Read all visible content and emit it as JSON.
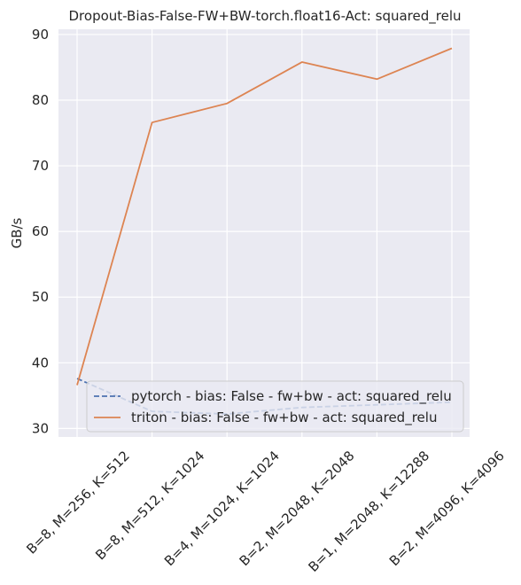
{
  "chart_data": {
    "type": "line",
    "title": "Dropout-Bias-False-FW+BW-torch.float16-Act: squared_relu",
    "xlabel": "",
    "ylabel": "GB/s",
    "categories": [
      "B=8, M=256, K=512",
      "B=8, M=512, K=1024",
      "B=4, M=1024, K=1024",
      "B=2, M=2048, K=2048",
      "B=1, M=2048, K=12288",
      "B=2, M=4096, K=4096"
    ],
    "yticks": [
      30,
      40,
      50,
      60,
      70,
      80,
      90
    ],
    "ylim": [
      28.7,
      90.8
    ],
    "grid": true,
    "legend_position": "lower-right",
    "series": [
      {
        "name": "pytorch - bias: False - fw+bw - act: squared_relu",
        "color": "#4c72b0",
        "style": "dashed",
        "values": [
          37.6,
          32.6,
          32.2,
          33.2,
          33.6,
          34.0
        ]
      },
      {
        "name": "triton - bias: False - fw+bw - act: squared_relu",
        "color": "#dd8452",
        "style": "solid",
        "values": [
          36.6,
          76.6,
          79.5,
          85.8,
          83.2,
          87.9
        ]
      }
    ]
  }
}
